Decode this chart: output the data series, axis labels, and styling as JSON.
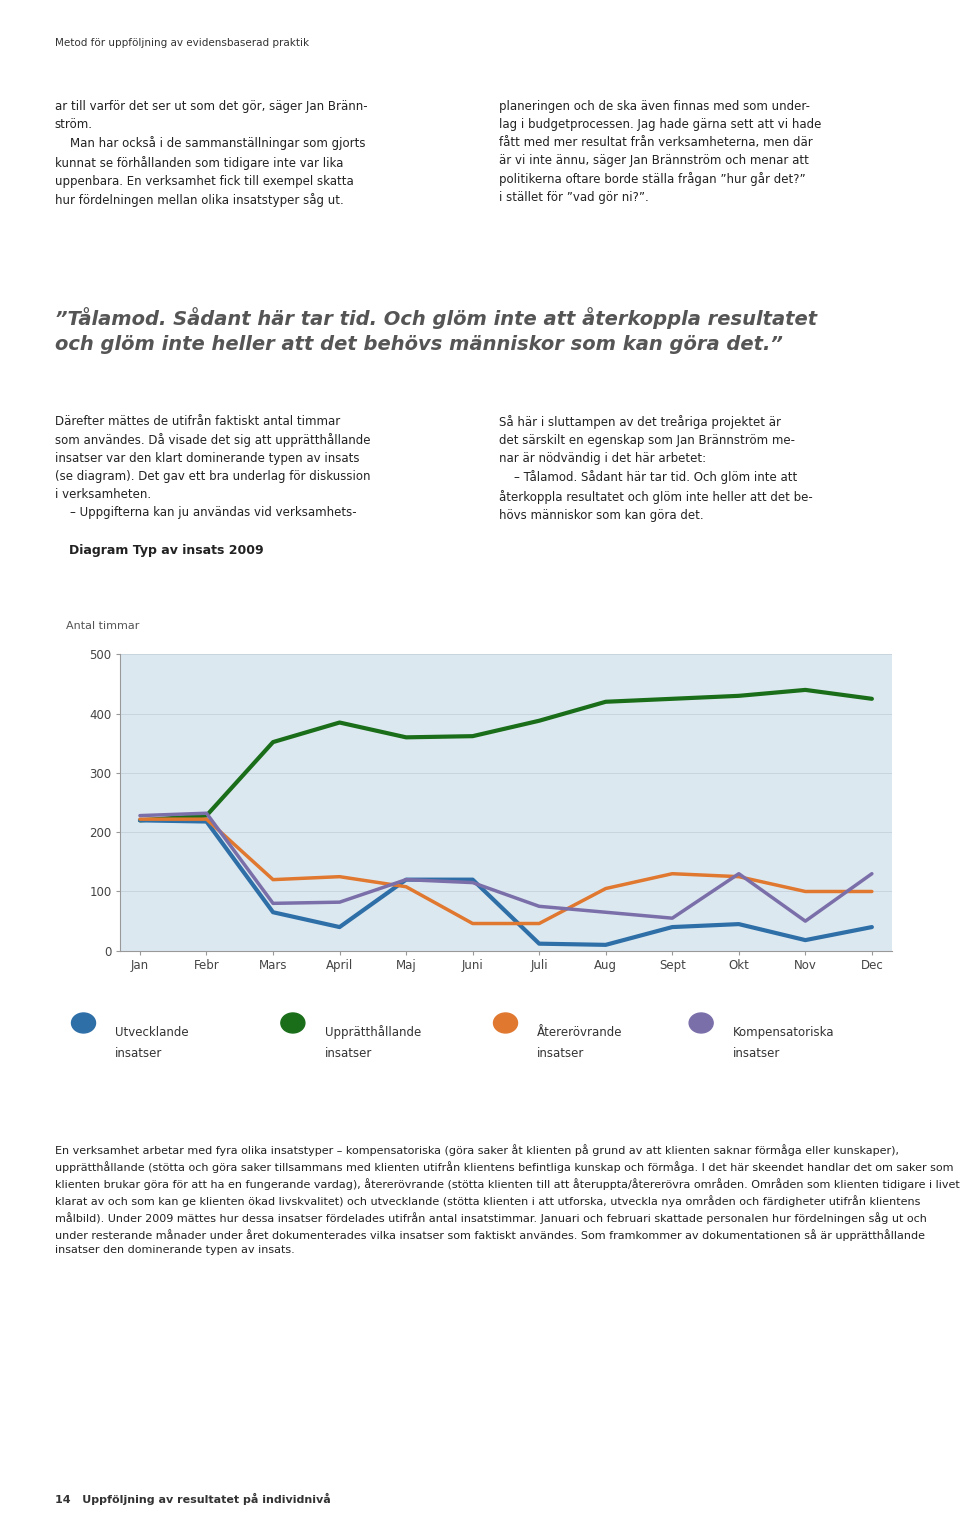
{
  "title": "Diagram Typ av insats 2009",
  "ylabel": "Antal timmar",
  "months": [
    "Jan",
    "Febr",
    "Mars",
    "April",
    "Maj",
    "Juni",
    "Juli",
    "Aug",
    "Sept",
    "Okt",
    "Nov",
    "Dec"
  ],
  "uppratthallande": {
    "label1": "Upprätthållande",
    "label2": "insatser",
    "color": "#1a6e1a",
    "linewidth": 3.0,
    "values": [
      220,
      228,
      352,
      385,
      360,
      362,
      388,
      420,
      425,
      430,
      440,
      425
    ]
  },
  "utvecklande": {
    "label1": "Utvecklande",
    "label2": "insatser",
    "color": "#2e6fa8",
    "linewidth": 3.0,
    "values": [
      220,
      218,
      65,
      40,
      120,
      120,
      12,
      10,
      40,
      45,
      18,
      40
    ]
  },
  "aterero": {
    "label1": "Återerövrande",
    "label2": "insatser",
    "color": "#e07830",
    "linewidth": 2.5,
    "values": [
      222,
      222,
      120,
      125,
      108,
      46,
      46,
      105,
      130,
      125,
      100,
      100
    ]
  },
  "kompensatoriska": {
    "label1": "Kompensatoriska",
    "label2": "insatser",
    "color": "#7b6faa",
    "linewidth": 2.5,
    "values": [
      228,
      232,
      80,
      82,
      120,
      115,
      75,
      65,
      55,
      130,
      50,
      130
    ]
  },
  "ylim": [
    0,
    500
  ],
  "yticks": [
    0,
    100,
    200,
    300,
    400,
    500
  ],
  "bg_color": "#dce8f0",
  "page_color": "#ffffff",
  "title_fontsize": 9,
  "axis_label_fontsize": 8,
  "tick_fontsize": 8.5,
  "legend_fontsize": 8.5,
  "header_text": "Metod för uppföljning av evidensbaserad praktik",
  "footer_text": "14   Uppföljning av resultatet på individnivå",
  "top_left_col": "ar till varför det ser ut som det gör, säger Jan Bränn-\nström.\n    Man har också i de sammanställningar som gjorts\nkunnat se förhållanden som tidigare inte var lika\nuppenbara. En verksamhet fick till exempel skatta\nhur fördelningen mellan olika insatstyper såg ut.",
  "top_right_col": "planeringen och de ska även finnas med som under-\nlag i budgetprocessen. Jag hade gärna sett att vi hade\nfått med mer resultat från verksamheterna, men där\när vi inte ännu, säger Jan Brännström och menar att\npolitikerna oftare borde ställa frågan ”hur går det?”\ni stället för ”vad gör ni?”.",
  "quote_text": "”Tålamod. Sådant här tar tid. Och glöm inte att återkoppla resultatet\noch glöm inte heller att det behövs människor som kan göra det.”",
  "mid_left_col": "Därefter mättes de utifrån faktiskt antal timmar\nsom användes. Då visade det sig att upprätthållande\ninsatser var den klart dominerande typen av insats\n(se diagram). Det gav ett bra underlag för diskussion\ni verksamheten.\n    – Uppgifterna kan ju användas vid verksamhets-",
  "mid_right_col": "Så här i sluttampen av det treåriga projektet är\ndet särskilt en egenskap som Jan Brännström me-\nnar är nödvändig i det här arbetet:\n    – Tålamod. Sådant här tar tid. Och glöm inte att\nåterkoppla resultatet och glöm inte heller att det be-\nhövs människor som kan göra det.",
  "bottom_text": "En verksamhet arbetar med fyra olika insatstyper – kompensatoriska (göra saker åt klienten på grund av att klienten saknar förmåga eller kunskaper), upprätthållande (stötta och göra saker tillsammans med klienten utifrån klientens befintliga kunskap och förmåga. I det här skeendet handlar det om saker som klienten brukar göra för att ha en fungerande vardag), återerövrande (stötta klienten till att återuppta/återerövra områden. Områden som klienten tidigare i livet klarat av och som kan ge klienten ökad livskvalitet) och utvecklande (stötta klienten i att utforska, utveckla nya områden och färdigheter utifrån klientens målbild). Under 2009 mättes hur dessa insatser fördelades utifrån antal insatstimmar. Januari och februari skattade personalen hur fördelningen såg ut och under resterande månader under året dokumenterades vilka insatser som faktiskt användes. Som framkommer av dokumentationen så är upprätthållande insatser den dominerande typen av insats."
}
